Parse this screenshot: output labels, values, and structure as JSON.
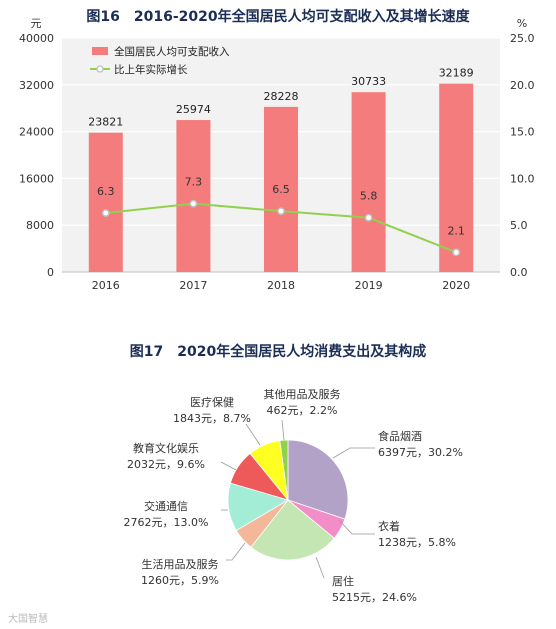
{
  "watermark": "大国智慧",
  "chart_data": [
    {
      "type": "bar+line",
      "title": "图16　2016-2020年全国居民人均可支配收入及其增长速度",
      "y_left_unit": "元",
      "y_right_unit": "%",
      "y_left_ticks": [
        "0",
        "8000",
        "16000",
        "24000",
        "32000",
        "40000"
      ],
      "y_right_ticks": [
        "0.0",
        "5.0",
        "10.0",
        "15.0",
        "20.0",
        "25.0"
      ],
      "ylim_left": [
        0,
        40000
      ],
      "ylim_right": [
        0,
        25
      ],
      "categories": [
        "2016",
        "2017",
        "2018",
        "2019",
        "2020"
      ],
      "legend_placement": "top-left",
      "series": [
        {
          "name": "全国居民人均可支配收入",
          "kind": "bar",
          "axis": "left",
          "color": "#f47c7c",
          "values": [
            23821,
            25974,
            28228,
            30733,
            32189
          ],
          "labels": [
            "23821",
            "25974",
            "28228",
            "30733",
            "32189"
          ]
        },
        {
          "name": "比上年实际增长",
          "kind": "line",
          "axis": "right",
          "color": "#92d050",
          "values": [
            6.3,
            7.3,
            6.5,
            5.8,
            2.1
          ],
          "labels": [
            "6.3",
            "7.3",
            "6.5",
            "5.8",
            "2.1"
          ]
        }
      ]
    },
    {
      "type": "pie",
      "title": "图17　2020年全国居民人均消费支出及其构成",
      "slices": [
        {
          "name": "食品烟酒",
          "value": 6397,
          "percent": 30.2,
          "amount_text": "6397元，30.2%",
          "color": "#b3a2c7"
        },
        {
          "name": "衣着",
          "value": 1238,
          "percent": 5.8,
          "amount_text": "1238元，5.8%",
          "color": "#f28dc7"
        },
        {
          "name": "居住",
          "value": 5215,
          "percent": 24.6,
          "amount_text": "5215元，24.6%",
          "color": "#c4e6b3"
        },
        {
          "name": "生活用品及服务",
          "value": 1260,
          "percent": 5.9,
          "amount_text": "1260元，5.9%",
          "color": "#f5b79a"
        },
        {
          "name": "交通通信",
          "value": 2762,
          "percent": 13.0,
          "amount_text": "2762元，13.0%",
          "color": "#a3ecd6"
        },
        {
          "name": "教育文化娱乐",
          "value": 2032,
          "percent": 9.6,
          "amount_text": "2032元，9.6%",
          "color": "#ee5a5a"
        },
        {
          "name": "医疗保健",
          "value": 1843,
          "percent": 8.7,
          "amount_text": "1843元，8.7%",
          "color": "#ffff22"
        },
        {
          "name": "其他用品及服务",
          "value": 462,
          "percent": 2.2,
          "amount_text": "462元，2.2%",
          "color": "#92d050"
        }
      ]
    }
  ]
}
